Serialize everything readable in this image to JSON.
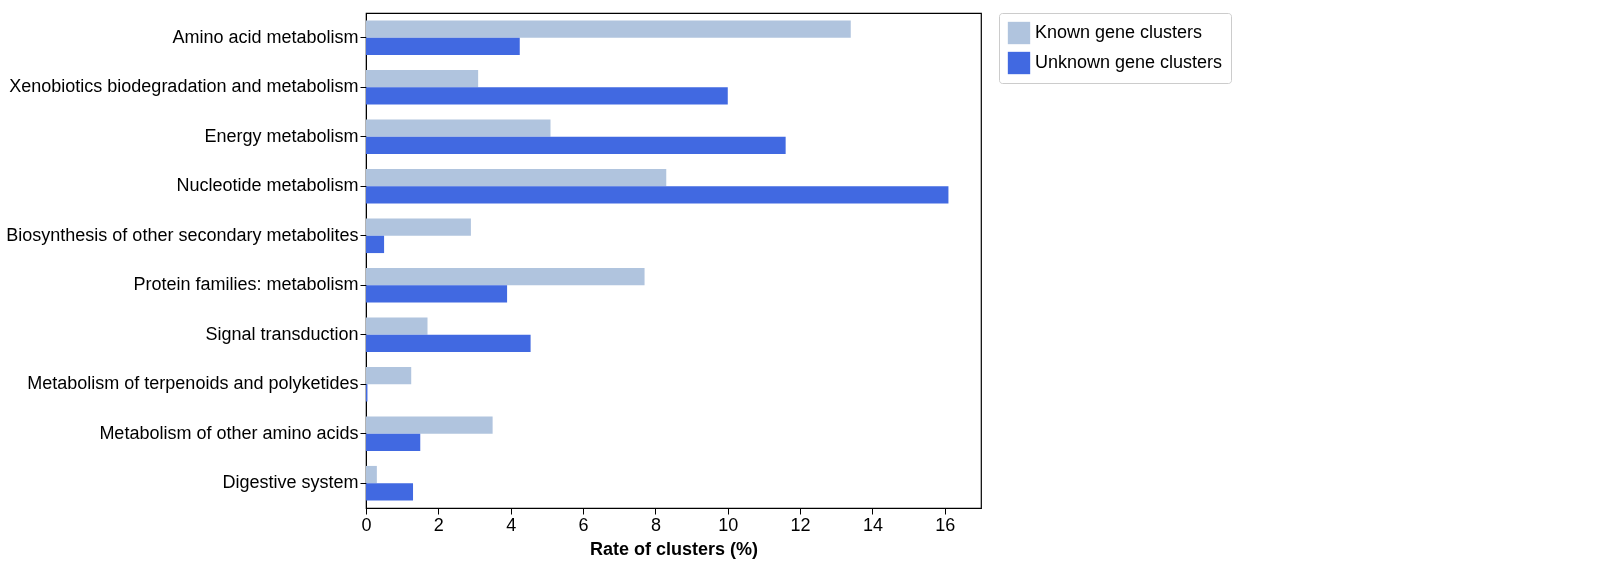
{
  "chart_data": {
    "type": "bar",
    "orientation": "horizontal",
    "xlabel": "Rate of clusters (%)",
    "categories": [
      "Amino acid metabolism",
      "Xenobiotics biodegradation and metabolism",
      "Energy metabolism",
      "Nucleotide metabolism",
      "Biosynthesis of other secondary metabolites",
      "Protein families: metabolism",
      "Signal transduction",
      "Metabolism of terpenoids and polyketides",
      "Metabolism of other amino acids",
      "Digestive system"
    ],
    "series": [
      {
        "name": "Known gene clusters",
        "color": "#b0c4de",
        "values": [
          13.4,
          3.1,
          5.1,
          8.3,
          2.9,
          7.7,
          1.7,
          1.25,
          3.5,
          0.3
        ]
      },
      {
        "name": "Unknown gene clusters",
        "color": "#4169e1",
        "values": [
          4.25,
          10.0,
          11.6,
          16.1,
          0.5,
          3.9,
          4.55,
          0.04,
          1.5,
          1.3
        ]
      }
    ],
    "xlim": [
      0,
      17
    ],
    "xticks": [
      0,
      2,
      4,
      6,
      8,
      10,
      12,
      14,
      16
    ],
    "grid": false,
    "legend": "top right"
  }
}
